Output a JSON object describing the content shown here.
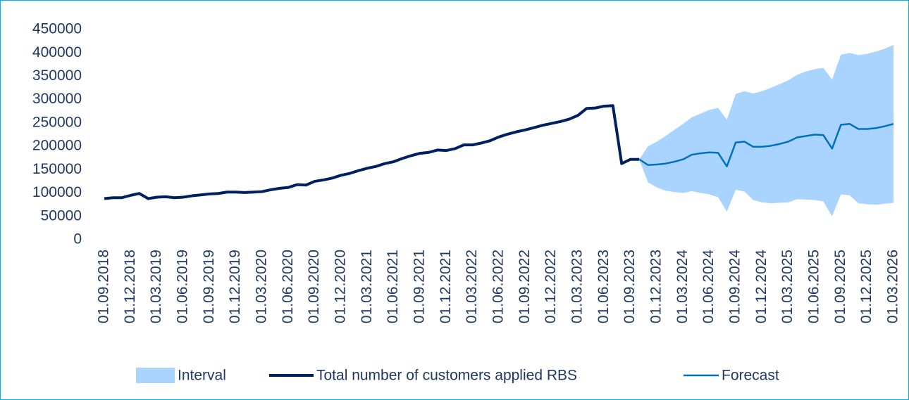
{
  "chart_data": {
    "type": "line",
    "categories": [
      "01.09.2018",
      null,
      null,
      "01.12.2018",
      null,
      null,
      "01.03.2019",
      null,
      null,
      "01.06.2019",
      null,
      null,
      "01.09.2019",
      null,
      null,
      "01.12.2019",
      null,
      null,
      "01.03.2020",
      null,
      null,
      "01.06.2020",
      null,
      null,
      "01.09.2020",
      null,
      null,
      "01.12.2020",
      null,
      null,
      "01.03.2021",
      null,
      null,
      "01.06.2021",
      null,
      null,
      "01.09.2021",
      null,
      null,
      "01.12.2021",
      null,
      null,
      "01.03.2022",
      null,
      null,
      "01.06.2022",
      null,
      null,
      "01.09.2022",
      null,
      null,
      "01.12.2022",
      null,
      null,
      "01.03.2023",
      null,
      null,
      "01.06.2023",
      null,
      null,
      "01.09.2023",
      null,
      null,
      "01.12.2023",
      null,
      null,
      "01.03.2024",
      null,
      null,
      "01.06.2024",
      null,
      null,
      "01.09.2024",
      null,
      null,
      "01.12.2024",
      null,
      null,
      "01.03.2025",
      null,
      null,
      "01.06.2025",
      null,
      null,
      "01.09.2025",
      null,
      null,
      "01.12.2025",
      null,
      null,
      "01.03.2026"
    ],
    "series": [
      {
        "name": "Interval",
        "color": "#a9d4ff",
        "band": true,
        "upper": [
          null,
          null,
          null,
          null,
          null,
          null,
          null,
          null,
          null,
          null,
          null,
          null,
          null,
          null,
          null,
          null,
          null,
          null,
          null,
          null,
          null,
          null,
          null,
          null,
          null,
          null,
          null,
          null,
          null,
          null,
          null,
          null,
          null,
          null,
          null,
          null,
          null,
          null,
          null,
          null,
          null,
          null,
          null,
          null,
          null,
          null,
          null,
          null,
          null,
          null,
          null,
          null,
          null,
          null,
          null,
          null,
          null,
          null,
          null,
          null,
          null,
          172000,
          200000,
          210000,
          222000,
          235000,
          248000,
          262000,
          270000,
          278000,
          282000,
          257000,
          312000,
          318000,
          313000,
          318000,
          325000,
          333000,
          341000,
          353000,
          360000,
          365000,
          368000,
          343000,
          396000,
          400000,
          395000,
          398000,
          403000,
          409000,
          417000
        ],
        "lower": [
          null,
          null,
          null,
          null,
          null,
          null,
          null,
          null,
          null,
          null,
          null,
          null,
          null,
          null,
          null,
          null,
          null,
          null,
          null,
          null,
          null,
          null,
          null,
          null,
          null,
          null,
          null,
          null,
          null,
          null,
          null,
          null,
          null,
          null,
          null,
          null,
          null,
          null,
          null,
          null,
          null,
          null,
          null,
          null,
          null,
          null,
          null,
          null,
          null,
          null,
          null,
          null,
          null,
          null,
          null,
          null,
          null,
          null,
          null,
          null,
          null,
          172000,
          123000,
          112000,
          105000,
          102000,
          100000,
          104000,
          100000,
          97000,
          91000,
          60000,
          107000,
          103000,
          85000,
          80000,
          78000,
          79000,
          80000,
          87000,
          86000,
          85000,
          82000,
          50000,
          97000,
          95000,
          78000,
          76000,
          75000,
          77000,
          79000
        ]
      },
      {
        "name": "Total number of customers applied RBS",
        "color": "#002060",
        "width": 4,
        "values": [
          88000,
          90000,
          90000,
          95000,
          99000,
          88000,
          91000,
          92000,
          90000,
          91000,
          94000,
          96000,
          98000,
          99000,
          102000,
          102000,
          101000,
          102000,
          103000,
          107000,
          110000,
          112000,
          118000,
          117000,
          125000,
          128000,
          132000,
          138000,
          142000,
          148000,
          153000,
          157000,
          163000,
          167000,
          174000,
          180000,
          185000,
          187000,
          192000,
          191000,
          195000,
          203000,
          203000,
          207000,
          212000,
          220000,
          226000,
          231000,
          235000,
          240000,
          245000,
          249000,
          253000,
          258000,
          266000,
          281000,
          282000,
          286000,
          287000,
          163000,
          172000,
          172000,
          null,
          null,
          null,
          null,
          null,
          null,
          null,
          null,
          null,
          null,
          null,
          null,
          null,
          null,
          null,
          null,
          null,
          null,
          null,
          null,
          null,
          null,
          null,
          null,
          null,
          null,
          null,
          null,
          null
        ]
      },
      {
        "name": "Forecast",
        "color": "#0070c0",
        "width": 2.5,
        "values": [
          null,
          null,
          null,
          null,
          null,
          null,
          null,
          null,
          null,
          null,
          null,
          null,
          null,
          null,
          null,
          null,
          null,
          null,
          null,
          null,
          null,
          null,
          null,
          null,
          null,
          null,
          null,
          null,
          null,
          null,
          null,
          null,
          null,
          null,
          null,
          null,
          null,
          null,
          null,
          null,
          null,
          null,
          null,
          null,
          null,
          null,
          null,
          null,
          null,
          null,
          null,
          null,
          null,
          null,
          null,
          null,
          null,
          null,
          null,
          null,
          null,
          172000,
          160000,
          161000,
          163000,
          167000,
          172000,
          182000,
          185000,
          187000,
          186000,
          157000,
          208000,
          210000,
          199000,
          199000,
          201000,
          205000,
          210000,
          219000,
          222000,
          225000,
          224000,
          195000,
          246000,
          248000,
          237000,
          237000,
          239000,
          243000,
          248000
        ]
      }
    ],
    "ylim": [
      0,
      450000
    ],
    "yticks": [
      0,
      50000,
      100000,
      150000,
      200000,
      250000,
      300000,
      350000,
      400000,
      450000
    ]
  }
}
